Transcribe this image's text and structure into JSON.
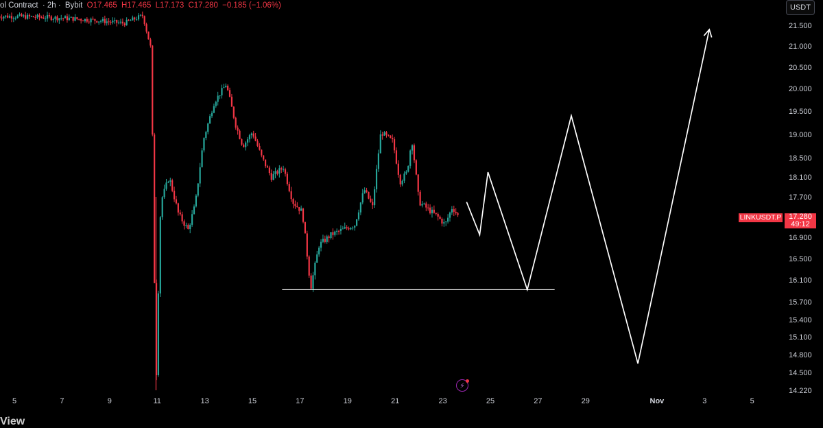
{
  "legend": {
    "symbol_fragment": "ol Contract",
    "timeframe": "· 2h ·",
    "exchange": "Bybit",
    "open": "O17.465",
    "high": "H17.465",
    "low": "L17.173",
    "close": "C17.280",
    "change": "−0.185 (−1.06%)"
  },
  "currency": "USDT",
  "price_tag": {
    "symbol": "LINKUSDT.P",
    "price": "17.280",
    "countdown": "49:12"
  },
  "colors": {
    "up": "#26a69a",
    "down": "#f23645",
    "annotation": "#ffffff",
    "background": "#000000",
    "axis_text": "#d1d4dc"
  },
  "footer_fragment": "View",
  "chart_data": {
    "type": "candlestick",
    "interval": "2h",
    "price_axis": {
      "ylim": [
        14.12,
        21.78
      ],
      "ticks": [
        "21.500",
        "21.000",
        "20.500",
        "20.000",
        "19.500",
        "19.000",
        "18.500",
        "18.100",
        "17.700",
        "16.900",
        "16.500",
        "16.100",
        "15.700",
        "15.400",
        "15.100",
        "14.800",
        "14.500",
        "14.220"
      ]
    },
    "date_axis": {
      "ticks": [
        "5",
        "7",
        "9",
        "11",
        "13",
        "15",
        "17",
        "19",
        "21",
        "23",
        "25",
        "27",
        "29",
        "Nov",
        "3",
        "5"
      ]
    },
    "last_price": 17.28,
    "series_outline": [
      {
        "day": 5.0,
        "price": 21.72
      },
      {
        "day": 7.0,
        "price": 21.68
      },
      {
        "day": 8.5,
        "price": 21.62
      },
      {
        "day": 9.6,
        "price": 21.55
      },
      {
        "day": 10.4,
        "price": 21.74
      },
      {
        "day": 10.75,
        "price": 20.9
      },
      {
        "day": 10.85,
        "price": 17.0
      },
      {
        "day": 10.95,
        "price": 14.22
      },
      {
        "day": 11.15,
        "price": 17.6
      },
      {
        "day": 11.5,
        "price": 18.1
      },
      {
        "day": 11.9,
        "price": 17.35
      },
      {
        "day": 12.3,
        "price": 17.05
      },
      {
        "day": 12.6,
        "price": 17.55
      },
      {
        "day": 12.95,
        "price": 18.9
      },
      {
        "day": 13.4,
        "price": 19.7
      },
      {
        "day": 13.9,
        "price": 20.1
      },
      {
        "day": 14.3,
        "price": 19.2
      },
      {
        "day": 14.6,
        "price": 18.75
      },
      {
        "day": 15.0,
        "price": 19.05
      },
      {
        "day": 15.4,
        "price": 18.5
      },
      {
        "day": 15.8,
        "price": 18.1
      },
      {
        "day": 16.3,
        "price": 18.3
      },
      {
        "day": 16.7,
        "price": 17.6
      },
      {
        "day": 17.1,
        "price": 17.4
      },
      {
        "day": 17.45,
        "price": 15.95
      },
      {
        "day": 17.8,
        "price": 16.75
      },
      {
        "day": 18.3,
        "price": 16.95
      },
      {
        "day": 18.8,
        "price": 17.05
      },
      {
        "day": 19.3,
        "price": 17.15
      },
      {
        "day": 19.7,
        "price": 17.85
      },
      {
        "day": 20.05,
        "price": 17.5
      },
      {
        "day": 20.4,
        "price": 19.05
      },
      {
        "day": 20.9,
        "price": 18.85
      },
      {
        "day": 21.2,
        "price": 18.0
      },
      {
        "day": 21.5,
        "price": 18.2
      },
      {
        "day": 21.7,
        "price": 18.9
      },
      {
        "day": 22.0,
        "price": 17.6
      },
      {
        "day": 22.4,
        "price": 17.45
      },
      {
        "day": 22.8,
        "price": 17.3
      },
      {
        "day": 23.1,
        "price": 17.15
      },
      {
        "day": 23.4,
        "price": 17.5
      },
      {
        "day": 23.7,
        "price": 17.28
      }
    ],
    "drawings": {
      "support_line": {
        "price": 15.92,
        "from_day": 16.25,
        "to_day": 27.7
      },
      "projection_path": [
        {
          "day": 24.0,
          "price": 17.6
        },
        {
          "day": 24.55,
          "price": 16.95
        },
        {
          "day": 24.9,
          "price": 18.2
        },
        {
          "day": 26.55,
          "price": 15.92
        },
        {
          "day": 28.4,
          "price": 19.4
        },
        {
          "day": 31.2,
          "price": 14.65
        },
        {
          "day": 34.2,
          "price": 21.4
        }
      ]
    }
  }
}
